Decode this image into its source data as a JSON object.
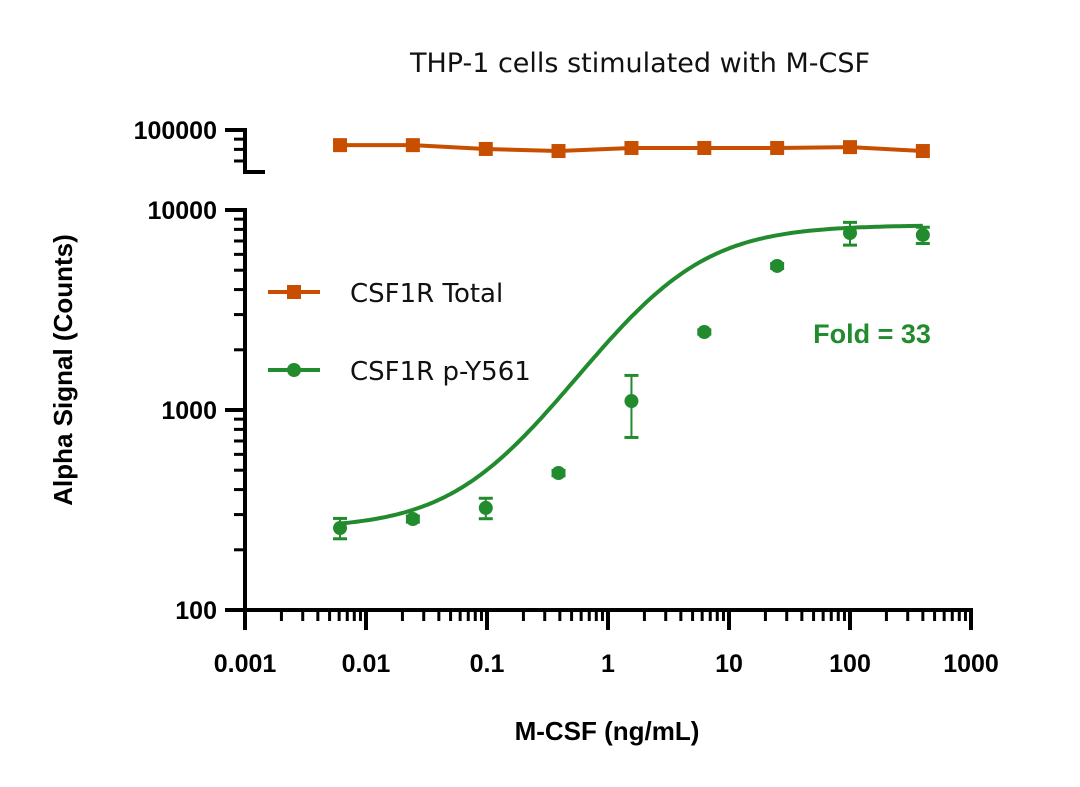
{
  "chart_data": {
    "type": "line",
    "title": "THP-1 cells stimulated with M-CSF",
    "xlabel": "M-CSF (ng/mL)",
    "ylabel": "Alpha Signal (Counts)",
    "x_scale": "log",
    "y_scale": "log",
    "xlim": [
      0.001,
      1000
    ],
    "x_ticks": [
      0.001,
      0.01,
      0.1,
      1,
      10,
      100,
      1000
    ],
    "x_tick_labels": [
      "0.001",
      "0.01",
      "0.1",
      "1",
      "10",
      "100",
      "1000"
    ],
    "y_axis_break": true,
    "panels": {
      "upper": {
        "ylim": [
          60000,
          100000
        ],
        "y_ticks": [
          100000
        ],
        "y_tick_labels": [
          "100000"
        ]
      },
      "lower": {
        "ylim": [
          100,
          10000
        ],
        "y_ticks": [
          100,
          1000,
          10000
        ],
        "y_tick_labels": [
          "100",
          "1000",
          "10000"
        ]
      }
    },
    "x": [
      0.0061,
      0.0244,
      0.0977,
      0.39,
      1.5625,
      6.25,
      25,
      100,
      400
    ],
    "series": [
      {
        "name": "CSF1R Total",
        "color": "#C84F00",
        "marker": "square",
        "panel": "upper",
        "connect": "line",
        "values": [
          84000,
          84000,
          80400,
          78500,
          81300,
          81300,
          81300,
          82100,
          78500
        ]
      },
      {
        "name": "CSF1R p-Y561",
        "color": "#228B2E",
        "marker": "circle",
        "panel": "lower",
        "connect": "sigmoid-fit",
        "values": [
          257,
          285,
          324,
          484,
          1109,
          2455,
          5250,
          7674,
          7500
        ],
        "errors": [
          30,
          10,
          38,
          15,
          380,
          60,
          150,
          1000,
          700
        ]
      }
    ],
    "legend": {
      "position": "upper-left",
      "entries": [
        "CSF1R Total",
        "CSF1R p-Y561"
      ]
    },
    "annotations": [
      {
        "text": "Fold = 33",
        "color": "#228B2E",
        "x": 100,
        "y": 2600
      }
    ],
    "grid": false
  }
}
